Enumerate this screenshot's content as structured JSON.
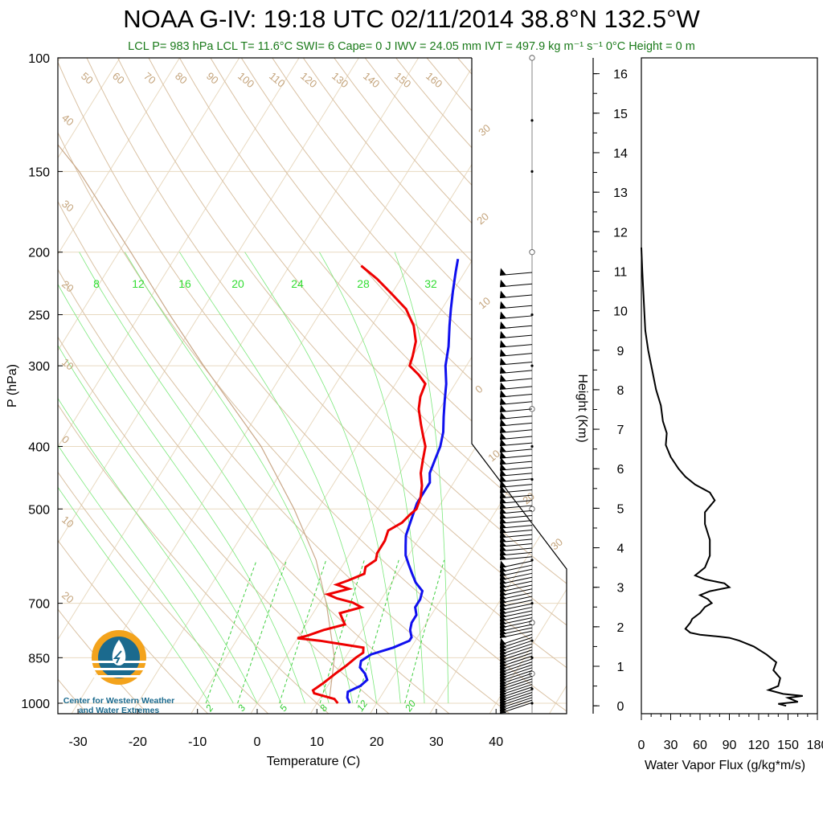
{
  "header": {
    "title": "NOAA G-IV: 19:18 UTC 02/11/2014  38.8°N 132.5°W",
    "subtitle": "LCL P= 983 hPa  LCL T= 11.6°C  SWI= 6  Cape= 0 J  IWV = 24.05 mm  IVT = 497.9 kg m⁻¹ s⁻¹  0°C Height = 0 m"
  },
  "logo": {
    "text_line1": "Center for Western Weather",
    "text_line2": "and Water Extremes"
  },
  "colors": {
    "temperature": "#ee0000",
    "dewpoint": "#1010ee",
    "isobar_isotherm": "#e8d9c0",
    "dry_adiabat": "#d9c1a3",
    "moist_adiabat": "#7be87b",
    "mixing_ratio": "#3fcf3f",
    "parcel": "#caa98a"
  },
  "chart_data": [
    {
      "type": "line",
      "subtype": "skew-T log-P diagram",
      "xlabel": "Temperature (C)",
      "ylabel": "P (hPa)",
      "x_ticks": [
        -30,
        -20,
        -10,
        0,
        10,
        20,
        30,
        40
      ],
      "y_ticks": [
        100,
        150,
        200,
        250,
        300,
        400,
        500,
        700,
        850,
        1000
      ],
      "xlim": [
        -33,
        40
      ],
      "ylim": [
        1000,
        100
      ],
      "y_scale": "log",
      "grid": true,
      "dry_adiabat_labels": [
        -20,
        -10,
        0,
        10,
        20,
        30,
        40,
        50,
        60,
        70,
        80,
        90,
        100,
        110,
        120,
        130,
        140,
        150,
        160
      ],
      "mixing_ratio_labels_top": [
        "8",
        "12",
        "16",
        "20",
        "24",
        "28",
        "32"
      ],
      "mixing_ratio_labels_bottom": [
        "2",
        "3",
        "5",
        "8",
        "12",
        "20"
      ],
      "right_adiabat_labels": [
        "30",
        "20",
        "10",
        "0",
        "10",
        "20",
        "30"
      ],
      "series": [
        {
          "name": "Temperature",
          "points_p_t": [
            [
              1000,
              13.5
            ],
            [
              985,
              12.5
            ],
            [
              975,
              10.5
            ],
            [
              965,
              8.5
            ],
            [
              955,
              8.0
            ],
            [
              930,
              9.0
            ],
            [
              900,
              10.0
            ],
            [
              875,
              11.0
            ],
            [
              850,
              11.8
            ],
            [
              835,
              12.5
            ],
            [
              820,
              12.0
            ],
            [
              810,
              8.0
            ],
            [
              800,
              4.0
            ],
            [
              793,
              0.0
            ],
            [
              785,
              1.5
            ],
            [
              770,
              3.5
            ],
            [
              755,
              6.5
            ],
            [
              740,
              5.5
            ],
            [
              725,
              4.5
            ],
            [
              710,
              7.5
            ],
            [
              698,
              5.5
            ],
            [
              688,
              2.5
            ],
            [
              678,
              0.5
            ],
            [
              665,
              3.5
            ],
            [
              655,
              1.0
            ],
            [
              645,
              2.5
            ],
            [
              630,
              4.5
            ],
            [
              615,
              4.0
            ],
            [
              600,
              5.0
            ],
            [
              585,
              4.5
            ],
            [
              560,
              4.5
            ],
            [
              540,
              4.0
            ],
            [
              525,
              5.5
            ],
            [
              510,
              6.0
            ],
            [
              500,
              6.5
            ],
            [
              480,
              6.0
            ],
            [
              460,
              5.0
            ],
            [
              440,
              3.5
            ],
            [
              420,
              2.5
            ],
            [
              400,
              1.5
            ],
            [
              385,
              0.0
            ],
            [
              370,
              -1.5
            ],
            [
              350,
              -3.5
            ],
            [
              335,
              -4.5
            ],
            [
              320,
              -5.0
            ],
            [
              310,
              -7.0
            ],
            [
              300,
              -9.5
            ],
            [
              290,
              -10.0
            ],
            [
              275,
              -11.0
            ],
            [
              260,
              -13.0
            ],
            [
              245,
              -16.0
            ],
            [
              232,
              -20.0
            ],
            [
              220,
              -24.0
            ],
            [
              210,
              -28.0
            ]
          ]
        },
        {
          "name": "Dewpoint",
          "points_p_t": [
            [
              1000,
              15.5
            ],
            [
              980,
              14.5
            ],
            [
              960,
              14.0
            ],
            [
              940,
              15.5
            ],
            [
              920,
              16.0
            ],
            [
              900,
              15.0
            ],
            [
              880,
              13.5
            ],
            [
              860,
              13.0
            ],
            [
              840,
              14.0
            ],
            [
              820,
              17.0
            ],
            [
              800,
              19.0
            ],
            [
              790,
              19.0
            ],
            [
              770,
              18.0
            ],
            [
              750,
              17.5
            ],
            [
              730,
              17.5
            ],
            [
              710,
              16.5
            ],
            [
              690,
              16.5
            ],
            [
              670,
              16.0
            ],
            [
              650,
              14.0
            ],
            [
              630,
              12.5
            ],
            [
              610,
              11.0
            ],
            [
              590,
              9.5
            ],
            [
              570,
              8.5
            ],
            [
              550,
              7.5
            ],
            [
              530,
              7.0
            ],
            [
              510,
              6.5
            ],
            [
              490,
              6.0
            ],
            [
              470,
              6.0
            ],
            [
              455,
              6.0
            ],
            [
              440,
              5.0
            ],
            [
              420,
              4.5
            ],
            [
              400,
              4.0
            ],
            [
              380,
              3.0
            ],
            [
              360,
              1.5
            ],
            [
              340,
              0.0
            ],
            [
              320,
              -1.5
            ],
            [
              300,
              -3.5
            ],
            [
              280,
              -5.0
            ],
            [
              260,
              -7.0
            ],
            [
              245,
              -8.5
            ],
            [
              230,
              -10.0
            ],
            [
              215,
              -11.5
            ],
            [
              205,
              -12.5
            ]
          ]
        },
        {
          "name": "Parcel",
          "points_p_t": [
            [
              983,
              11.6
            ],
            [
              850,
              8.2
            ],
            [
              700,
              1.2
            ],
            [
              600,
              -5.0
            ],
            [
              500,
              -14.0
            ],
            [
              400,
              -26.0
            ],
            [
              300,
              -44.0
            ],
            [
              250,
              -55.0
            ],
            [
              200,
              -68.0
            ],
            [
              150,
              -85.0
            ],
            [
              100,
              -112.0
            ]
          ]
        }
      ]
    },
    {
      "type": "line",
      "subtype": "height profile",
      "xlabel": "Water Vapor Flux (g/kg*m/s)",
      "ylabel": "Height (Km)",
      "x_ticks": [
        0,
        30,
        60,
        90,
        120,
        150,
        180
      ],
      "y_ticks": [
        0,
        1,
        2,
        3,
        4,
        5,
        6,
        7,
        8,
        9,
        10,
        11,
        12,
        13,
        14,
        15,
        16
      ],
      "xlim": [
        0,
        180
      ],
      "ylim": [
        -0.2,
        16.4
      ],
      "series": [
        {
          "name": "Water Vapor Flux",
          "points_h_v": [
            [
              0.0,
              148
            ],
            [
              0.05,
              140
            ],
            [
              0.1,
              160
            ],
            [
              0.2,
              150
            ],
            [
              0.25,
              165
            ],
            [
              0.3,
              145
            ],
            [
              0.4,
              130
            ],
            [
              0.5,
              140
            ],
            [
              0.7,
              142
            ],
            [
              0.9,
              135
            ],
            [
              1.1,
              138
            ],
            [
              1.3,
              128
            ],
            [
              1.5,
              115
            ],
            [
              1.65,
              100
            ],
            [
              1.72,
              90
            ],
            [
              1.75,
              80
            ],
            [
              1.8,
              60
            ],
            [
              1.85,
              50
            ],
            [
              1.95,
              45
            ],
            [
              2.1,
              50
            ],
            [
              2.2,
              52
            ],
            [
              2.35,
              60
            ],
            [
              2.5,
              65
            ],
            [
              2.6,
              72
            ],
            [
              2.7,
              68
            ],
            [
              2.8,
              60
            ],
            [
              2.9,
              70
            ],
            [
              3.0,
              90
            ],
            [
              3.1,
              85
            ],
            [
              3.2,
              65
            ],
            [
              3.3,
              55
            ],
            [
              3.5,
              65
            ],
            [
              3.8,
              70
            ],
            [
              4.2,
              70
            ],
            [
              4.6,
              65
            ],
            [
              4.9,
              65
            ],
            [
              5.2,
              75
            ],
            [
              5.4,
              70
            ],
            [
              5.6,
              55
            ],
            [
              5.8,
              45
            ],
            [
              6.0,
              38
            ],
            [
              6.3,
              30
            ],
            [
              6.6,
              25
            ],
            [
              6.9,
              26
            ],
            [
              7.2,
              22
            ],
            [
              7.6,
              20
            ],
            [
              8.0,
              15
            ],
            [
              8.5,
              11
            ],
            [
              9.0,
              7
            ],
            [
              9.5,
              4
            ],
            [
              10.0,
              3
            ],
            [
              10.5,
              2
            ],
            [
              11.0,
              1
            ],
            [
              11.6,
              0
            ]
          ]
        }
      ]
    }
  ],
  "winds": {
    "barb_count_description": "wind barbs along right side, 200-1000 hPa"
  }
}
